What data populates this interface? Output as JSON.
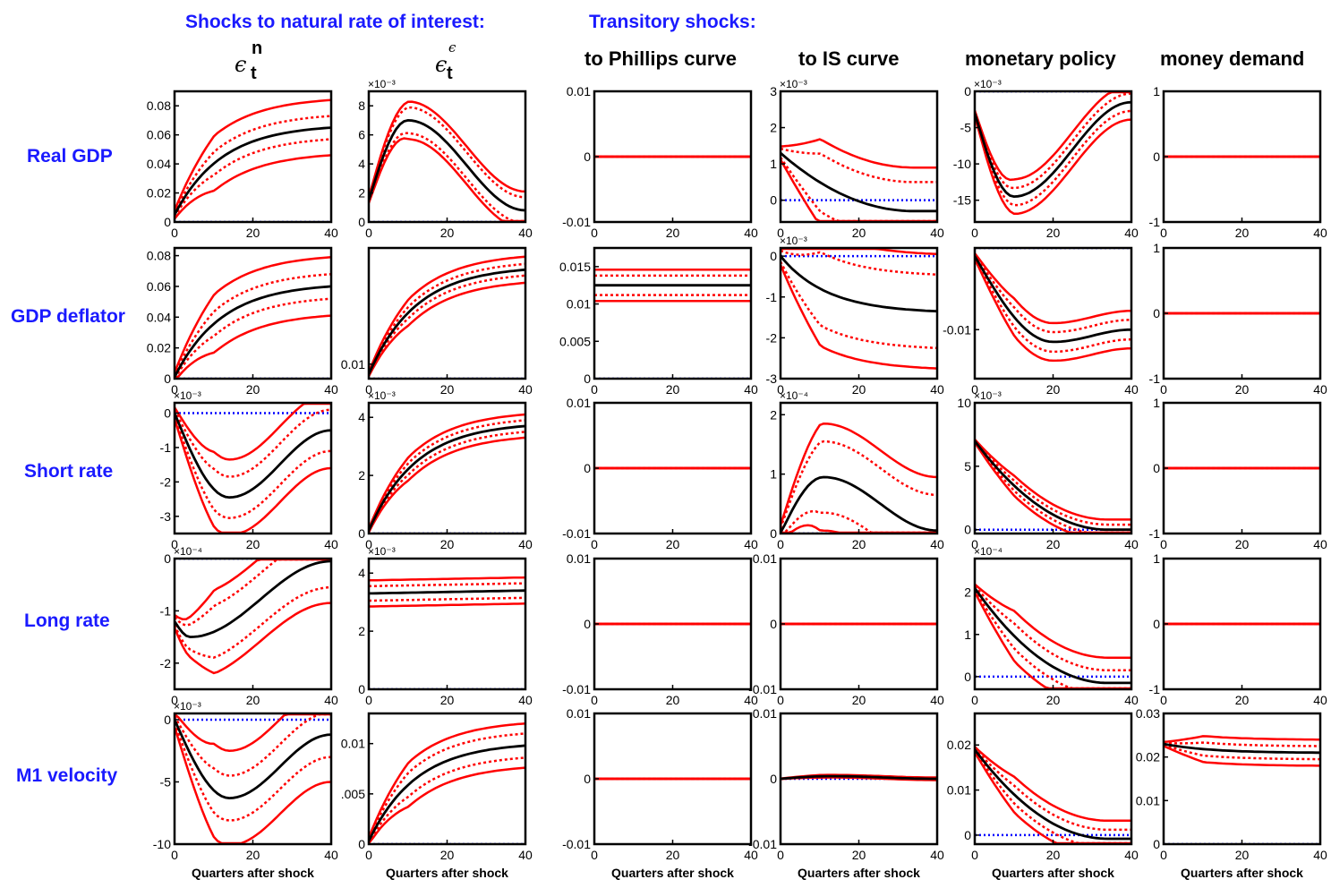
{
  "headers": {
    "natural_rate": "Shocks to natural rate of interest:",
    "transitory": "Transitory shocks:"
  },
  "columns": [
    {
      "title": "",
      "symbol": "ϵ",
      "sup": "n",
      "sub": "t"
    },
    {
      "title": "",
      "symbol": "ϵ",
      "sup": "ϵ",
      "sub": "t"
    },
    {
      "title": "to Phillips curve"
    },
    {
      "title": "to IS curve"
    },
    {
      "title": "monetary policy"
    },
    {
      "title": "money demand"
    }
  ],
  "rows": [
    "Real GDP",
    "GDP deflator",
    "Short rate",
    "Long rate",
    "M1 velocity"
  ],
  "colors": {
    "header": "#1a1aff",
    "median": "#000000",
    "band": "#ff0000",
    "zero": "#0000ff"
  },
  "chart_data": {
    "type": "line",
    "description_kind": "impulse responses, 5x6 grid",
    "xlabel": "Quarters after shock",
    "x": [
      0,
      40
    ],
    "xticks": [
      0,
      20,
      40
    ],
    "series_names": [
      "median",
      "inner band",
      "outer band",
      "zero line"
    ],
    "panels": [
      {
        "row": 0,
        "col": 0,
        "ylim": [
          0,
          0.09
        ],
        "yticks": [
          0,
          0.02,
          0.04,
          0.06,
          0.08
        ],
        "yticklabels": [
          "0",
          "0.02",
          "0.04",
          "0.06",
          "0.08"
        ],
        "scale_label": "",
        "shape": "rise",
        "start": 0.005,
        "peak": 0.065,
        "tpeak": 28,
        "end": 0.065,
        "inner": 0.008,
        "outer": 0.019
      },
      {
        "row": 0,
        "col": 1,
        "ylim": [
          0,
          9
        ],
        "yticks": [
          0,
          2,
          4,
          6,
          8
        ],
        "yticklabels": [
          "0",
          "2",
          "4",
          "6",
          "8"
        ],
        "scale_label": "×10⁻³",
        "shape": "hump",
        "start": 1.5,
        "peak": 7,
        "tpeak": 10,
        "end": 0.8,
        "inner": 0.9,
        "outer": 1.3
      },
      {
        "row": 0,
        "col": 2,
        "ylim": [
          -0.01,
          0.01
        ],
        "yticks": [
          -0.01,
          0,
          0.01
        ],
        "yticklabels": [
          "-0.01",
          "0",
          "0.01"
        ],
        "scale_label": "",
        "shape": "flat",
        "start": 0,
        "peak": 0,
        "tpeak": 20,
        "end": 0,
        "inner": 0,
        "outer": 0
      },
      {
        "row": 0,
        "col": 3,
        "ylim": [
          -0.6,
          3
        ],
        "yticks": [
          0,
          1,
          2,
          3
        ],
        "yticklabels": [
          "0",
          "1",
          "2",
          "3"
        ],
        "scale_label": "×10⁻³",
        "shape": "decay",
        "start": 1.3,
        "peak": 1.3,
        "tpeak": 0,
        "end": -0.3,
        "inner": 0.8,
        "outer": 1.2
      },
      {
        "row": 0,
        "col": 4,
        "ylim": [
          -18,
          0
        ],
        "yticks": [
          -15,
          -10,
          -5,
          0
        ],
        "yticklabels": [
          "-15",
          "-10",
          "-5",
          "0"
        ],
        "scale_label": "×10⁻³",
        "shape": "hump",
        "start": -3,
        "peak": -14.5,
        "tpeak": 10,
        "end": -1.5,
        "inner": 1.2,
        "outer": 2.4
      },
      {
        "row": 0,
        "col": 5,
        "ylim": [
          -1,
          1
        ],
        "yticks": [
          -1,
          0,
          1
        ],
        "yticklabels": [
          "-1",
          "0",
          "1"
        ],
        "scale_label": "",
        "shape": "flat",
        "start": 0,
        "peak": 0,
        "tpeak": 20,
        "end": 0,
        "inner": 0,
        "outer": 0
      },
      {
        "row": 1,
        "col": 0,
        "ylim": [
          0,
          0.085
        ],
        "yticks": [
          0,
          0.02,
          0.04,
          0.06,
          0.08
        ],
        "yticklabels": [
          "0",
          "0.02",
          "0.04",
          "0.06",
          "0.08"
        ],
        "scale_label": "",
        "shape": "rise",
        "start": 0.001,
        "peak": 0.06,
        "tpeak": 40,
        "end": 0.06,
        "inner": 0.008,
        "outer": 0.019
      },
      {
        "row": 1,
        "col": 1,
        "ylim": [
          0,
          0.09
        ],
        "yticks": [
          0.01
        ],
        "yticklabels": [
          "0.01"
        ],
        "scale_label": "",
        "shape": "rise",
        "start": 0.003,
        "peak": 0.075,
        "tpeak": 40,
        "end": 0.075,
        "inner": 0.004,
        "outer": 0.009
      },
      {
        "row": 1,
        "col": 2,
        "ylim": [
          0,
          0.0175
        ],
        "yticks": [
          0,
          0.005,
          0.01,
          0.015
        ],
        "yticklabels": [
          "0",
          "0.005",
          "0.01",
          "0.015"
        ],
        "scale_label": "",
        "shape": "flat",
        "start": 0.0125,
        "peak": 0.0125,
        "tpeak": 20,
        "end": 0.0125,
        "inner": 0.0013,
        "outer": 0.0021
      },
      {
        "row": 1,
        "col": 3,
        "ylim": [
          -3,
          0.2
        ],
        "yticks": [
          -3,
          -2,
          -1,
          0
        ],
        "yticklabels": [
          "-3",
          "-2",
          "-1",
          "0"
        ],
        "scale_label": "×10⁻³",
        "shape": "rise",
        "start": 0,
        "peak": -1.35,
        "tpeak": 40,
        "end": -1.35,
        "inner": 0.9,
        "outer": 1.4
      },
      {
        "row": 1,
        "col": 4,
        "ylim": [
          -0.016,
          0.0
        ],
        "yticks": [
          -0.01
        ],
        "yticklabels": [
          "-0.01"
        ],
        "scale_label": "",
        "shape": "hump",
        "start": -0.001,
        "peak": -0.0115,
        "tpeak": 20,
        "end": -0.01,
        "inner": 0.0012,
        "outer": 0.0023
      },
      {
        "row": 1,
        "col": 5,
        "ylim": [
          -1,
          1
        ],
        "yticks": [
          -1,
          0,
          1
        ],
        "yticklabels": [
          "-1",
          "0",
          "1"
        ],
        "scale_label": "",
        "shape": "flat",
        "start": 0,
        "peak": 0,
        "tpeak": 20,
        "end": 0,
        "inner": 0,
        "outer": 0
      },
      {
        "row": 2,
        "col": 0,
        "ylim": [
          -3.5,
          0.3
        ],
        "yticks": [
          -3,
          -2,
          -1,
          0
        ],
        "yticklabels": [
          "-3",
          "-2",
          "-1",
          "0"
        ],
        "scale_label": "×10⁻³",
        "shape": "hump",
        "start": 0,
        "peak": -2.45,
        "tpeak": 14,
        "end": -0.5,
        "inner": 0.6,
        "outer": 1.1
      },
      {
        "row": 2,
        "col": 1,
        "ylim": [
          0,
          4.5
        ],
        "yticks": [
          0,
          2,
          4
        ],
        "yticklabels": [
          "0",
          "2",
          "4"
        ],
        "scale_label": "×10⁻³",
        "shape": "rise",
        "start": 0.1,
        "peak": 3.7,
        "tpeak": 40,
        "end": 3.7,
        "inner": 0.2,
        "outer": 0.4
      },
      {
        "row": 2,
        "col": 2,
        "ylim": [
          -0.01,
          0.01
        ],
        "yticks": [
          -0.01,
          0,
          0.01
        ],
        "yticklabels": [
          "-0.01",
          "0",
          "0.01"
        ],
        "scale_label": "",
        "shape": "flat",
        "start": 0,
        "peak": 0,
        "tpeak": 20,
        "end": 0,
        "inner": 0,
        "outer": 0
      },
      {
        "row": 2,
        "col": 3,
        "ylim": [
          0,
          2.2
        ],
        "yticks": [
          0,
          1,
          2
        ],
        "yticklabels": [
          "0",
          "1",
          "2"
        ],
        "scale_label": "×10⁻⁴",
        "shape": "hump",
        "start": 0,
        "peak": 0.95,
        "tpeak": 11,
        "end": 0.05,
        "inner": 0.6,
        "outer": 0.9
      },
      {
        "row": 2,
        "col": 4,
        "ylim": [
          -0.3,
          10
        ],
        "yticks": [
          0,
          5,
          10
        ],
        "yticklabels": [
          "0",
          "5",
          "10"
        ],
        "scale_label": "×10⁻³",
        "shape": "decay",
        "start": 7,
        "peak": 7,
        "tpeak": 0,
        "end": 0,
        "inner": 0.4,
        "outer": 0.8
      },
      {
        "row": 2,
        "col": 5,
        "ylim": [
          -1,
          1
        ],
        "yticks": [
          -1,
          0,
          1
        ],
        "yticklabels": [
          "-1",
          "0",
          "1"
        ],
        "scale_label": "",
        "shape": "flat",
        "start": 0,
        "peak": 0,
        "tpeak": 20,
        "end": 0,
        "inner": 0,
        "outer": 0
      },
      {
        "row": 3,
        "col": 0,
        "ylim": [
          -2.5,
          0
        ],
        "yticks": [
          -2,
          -1,
          0
        ],
        "yticklabels": [
          "-2",
          "-1",
          "0"
        ],
        "scale_label": "×10⁻⁴",
        "shape": "hump",
        "start": -1.2,
        "peak": -1.5,
        "tpeak": 4,
        "end": -0.05,
        "inner": 0.5,
        "outer": 0.8
      },
      {
        "row": 3,
        "col": 1,
        "ylim": [
          0,
          4.5
        ],
        "yticks": [
          0,
          2,
          4
        ],
        "yticklabels": [
          "0",
          "2",
          "4"
        ],
        "scale_label": "×10⁻³",
        "shape": "flat",
        "start": 3.3,
        "peak": 3.4,
        "tpeak": 40,
        "end": 3.4,
        "inner": 0.25,
        "outer": 0.45
      },
      {
        "row": 3,
        "col": 2,
        "ylim": [
          -0.01,
          0.01
        ],
        "yticks": [
          -0.01,
          0,
          0.01
        ],
        "yticklabels": [
          "-0.01",
          "0",
          "0.01"
        ],
        "scale_label": "",
        "shape": "flat",
        "start": 0,
        "peak": 0,
        "tpeak": 20,
        "end": 0,
        "inner": 0,
        "outer": 0
      },
      {
        "row": 3,
        "col": 3,
        "ylim": [
          -0.01,
          0.01
        ],
        "yticks": [
          -0.01,
          0,
          0.01
        ],
        "yticklabels": [
          "-0.01",
          "0",
          "0.01"
        ],
        "scale_label": "",
        "shape": "flat",
        "start": 0,
        "peak": 0,
        "tpeak": 20,
        "end": 0,
        "inner": 0,
        "outer": 0
      },
      {
        "row": 3,
        "col": 4,
        "ylim": [
          -0.3,
          2.8
        ],
        "yticks": [
          0,
          1,
          2
        ],
        "yticklabels": [
          "0",
          "1",
          "2"
        ],
        "scale_label": "×10⁻⁴",
        "shape": "decay",
        "start": 2.1,
        "peak": 2.1,
        "tpeak": 0,
        "end": -0.15,
        "inner": 0.3,
        "outer": 0.6
      },
      {
        "row": 3,
        "col": 5,
        "ylim": [
          -1,
          1
        ],
        "yticks": [
          -1,
          0,
          1
        ],
        "yticklabels": [
          "-1",
          "0",
          "1"
        ],
        "scale_label": "",
        "shape": "flat",
        "start": 0,
        "peak": 0,
        "tpeak": 20,
        "end": 0,
        "inner": 0,
        "outer": 0
      },
      {
        "row": 4,
        "col": 0,
        "ylim": [
          -10,
          0.5
        ],
        "yticks": [
          -10,
          -5,
          0
        ],
        "yticklabels": [
          "-10",
          "-5",
          "0"
        ],
        "scale_label": "×10⁻³",
        "shape": "hump",
        "start": 0,
        "peak": -6.3,
        "tpeak": 14,
        "end": -1.2,
        "inner": 1.8,
        "outer": 3.8
      },
      {
        "row": 4,
        "col": 1,
        "ylim": [
          0,
          0.013
        ],
        "yticks": [
          0,
          0.005,
          0.01
        ],
        "yticklabels": [
          "0",
          ".005",
          "0.01"
        ],
        "scale_label": "",
        "shape": "rise",
        "start": 0.0003,
        "peak": 0.0098,
        "tpeak": 40,
        "end": 0.0098,
        "inner": 0.0012,
        "outer": 0.0022
      },
      {
        "row": 4,
        "col": 2,
        "ylim": [
          -0.01,
          0.01
        ],
        "yticks": [
          -0.01,
          0,
          0.01
        ],
        "yticklabels": [
          "-0.01",
          "0",
          "0.01"
        ],
        "scale_label": "",
        "shape": "flat",
        "start": 0,
        "peak": 0,
        "tpeak": 20,
        "end": 0,
        "inner": 0,
        "outer": 0
      },
      {
        "row": 4,
        "col": 3,
        "ylim": [
          -0.01,
          0.01
        ],
        "yticks": [
          -0.01,
          0,
          0.01
        ],
        "yticklabels": [
          "-0.01",
          "0",
          "0.01"
        ],
        "scale_label": "",
        "shape": "hump",
        "start": 0,
        "peak": 0.0004,
        "tpeak": 13,
        "end": 0,
        "inner": 0.0001,
        "outer": 0.0002
      },
      {
        "row": 4,
        "col": 4,
        "ylim": [
          -0.002,
          0.027
        ],
        "yticks": [
          0,
          0.01,
          0.02
        ],
        "yticklabels": [
          "0",
          "0.01",
          "0.02"
        ],
        "scale_label": "",
        "shape": "decay",
        "start": 0.019,
        "peak": 0.019,
        "tpeak": 0,
        "end": -0.0008,
        "inner": 0.002,
        "outer": 0.004
      },
      {
        "row": 4,
        "col": 5,
        "ylim": [
          0,
          0.03
        ],
        "yticks": [
          0,
          0.01,
          0.02,
          0.03
        ],
        "yticklabels": [
          "0",
          "0.01",
          "0.02",
          "0.03"
        ],
        "scale_label": "",
        "shape": "rise",
        "start": 0.023,
        "peak": 0.021,
        "tpeak": 40,
        "end": 0.021,
        "inner": 0.0015,
        "outer": 0.003
      }
    ]
  }
}
